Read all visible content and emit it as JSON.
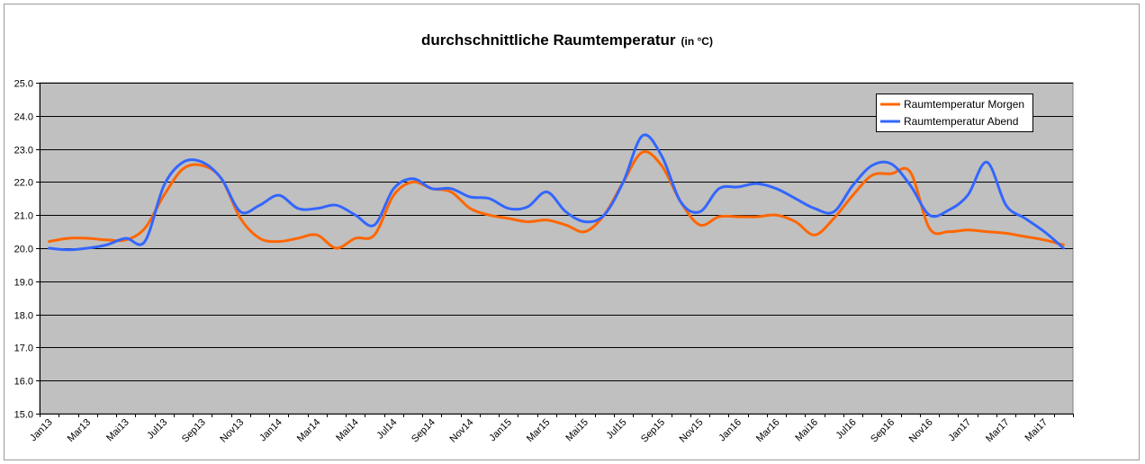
{
  "chart_data": {
    "type": "line",
    "title": "durchschnittliche Raumtemperatur",
    "title_unit": "(in °C)",
    "xlabel": "",
    "ylabel": "",
    "ylim": [
      15.0,
      25.0
    ],
    "yticks": [
      "15.0",
      "16.0",
      "17.0",
      "18.0",
      "19.0",
      "20.0",
      "21.0",
      "22.0",
      "23.0",
      "24.0",
      "25.0"
    ],
    "grid": true,
    "legend_position": "top-right",
    "plot_background": "#c0c0c0",
    "categories": [
      "Jan13",
      "Feb13",
      "Mar13",
      "Apr13",
      "Mai13",
      "Jun13",
      "Jul13",
      "Aug13",
      "Sep13",
      "Okt13",
      "Nov13",
      "Dez13",
      "Jan14",
      "Feb14",
      "Mar14",
      "Apr14",
      "Mai14",
      "Jun14",
      "Jul14",
      "Aug14",
      "Sep14",
      "Okt14",
      "Nov14",
      "Dez14",
      "Jan15",
      "Feb15",
      "Mar15",
      "Apr15",
      "Mai15",
      "Jun15",
      "Jul15",
      "Aug15",
      "Sep15",
      "Okt15",
      "Nov15",
      "Dez15",
      "Jan16",
      "Feb16",
      "Mar16",
      "Apr16",
      "Mai16",
      "Jun16",
      "Jul16",
      "Aug16",
      "Sep16",
      "Okt16",
      "Nov16",
      "Dez16",
      "Jan17",
      "Feb17",
      "Mar17",
      "Apr17",
      "Mai17",
      "Jun17"
    ],
    "tick_labels": [
      "Jan13",
      "Mar13",
      "Mai13",
      "Jul13",
      "Sep13",
      "Nov13",
      "Jan14",
      "Mar14",
      "Mai14",
      "Jul14",
      "Sep14",
      "Nov14",
      "Jan15",
      "Mar15",
      "Mai15",
      "Jul15",
      "Sep15",
      "Nov15",
      "Jan16",
      "Mar16",
      "Mai16",
      "Jul16",
      "Sep16",
      "Nov16",
      "Jan17",
      "Mar17",
      "Mai17"
    ],
    "series": [
      {
        "name": "Raumtemperatur Morgen",
        "color": "#ff6600",
        "values": [
          20.2,
          20.3,
          20.3,
          20.25,
          20.25,
          20.6,
          21.6,
          22.4,
          22.5,
          22.1,
          20.9,
          20.3,
          20.2,
          20.3,
          20.4,
          20.0,
          20.3,
          20.4,
          21.6,
          22.0,
          21.8,
          21.7,
          21.2,
          21.0,
          20.9,
          20.8,
          20.85,
          20.7,
          20.5,
          21.0,
          22.0,
          22.9,
          22.5,
          21.4,
          20.7,
          20.95,
          20.95,
          20.95,
          21.0,
          20.8,
          20.4,
          20.9,
          21.6,
          22.2,
          22.25,
          22.3,
          20.6,
          20.5,
          20.55,
          20.5,
          20.45,
          20.35,
          20.25,
          20.1
        ]
      },
      {
        "name": "Raumtemperatur Abend",
        "color": "#3366ff",
        "values": [
          20.0,
          19.95,
          20.0,
          20.1,
          20.3,
          20.2,
          21.9,
          22.6,
          22.6,
          22.1,
          21.1,
          21.3,
          21.6,
          21.2,
          21.2,
          21.3,
          21.0,
          20.7,
          21.8,
          22.1,
          21.8,
          21.8,
          21.55,
          21.5,
          21.2,
          21.25,
          21.7,
          21.1,
          20.8,
          21.0,
          22.0,
          23.4,
          22.8,
          21.4,
          21.1,
          21.8,
          21.85,
          21.95,
          21.8,
          21.5,
          21.2,
          21.1,
          21.9,
          22.5,
          22.55,
          21.9,
          21.0,
          21.15,
          21.6,
          22.6,
          21.3,
          20.9,
          20.5,
          20.0
        ]
      }
    ]
  }
}
